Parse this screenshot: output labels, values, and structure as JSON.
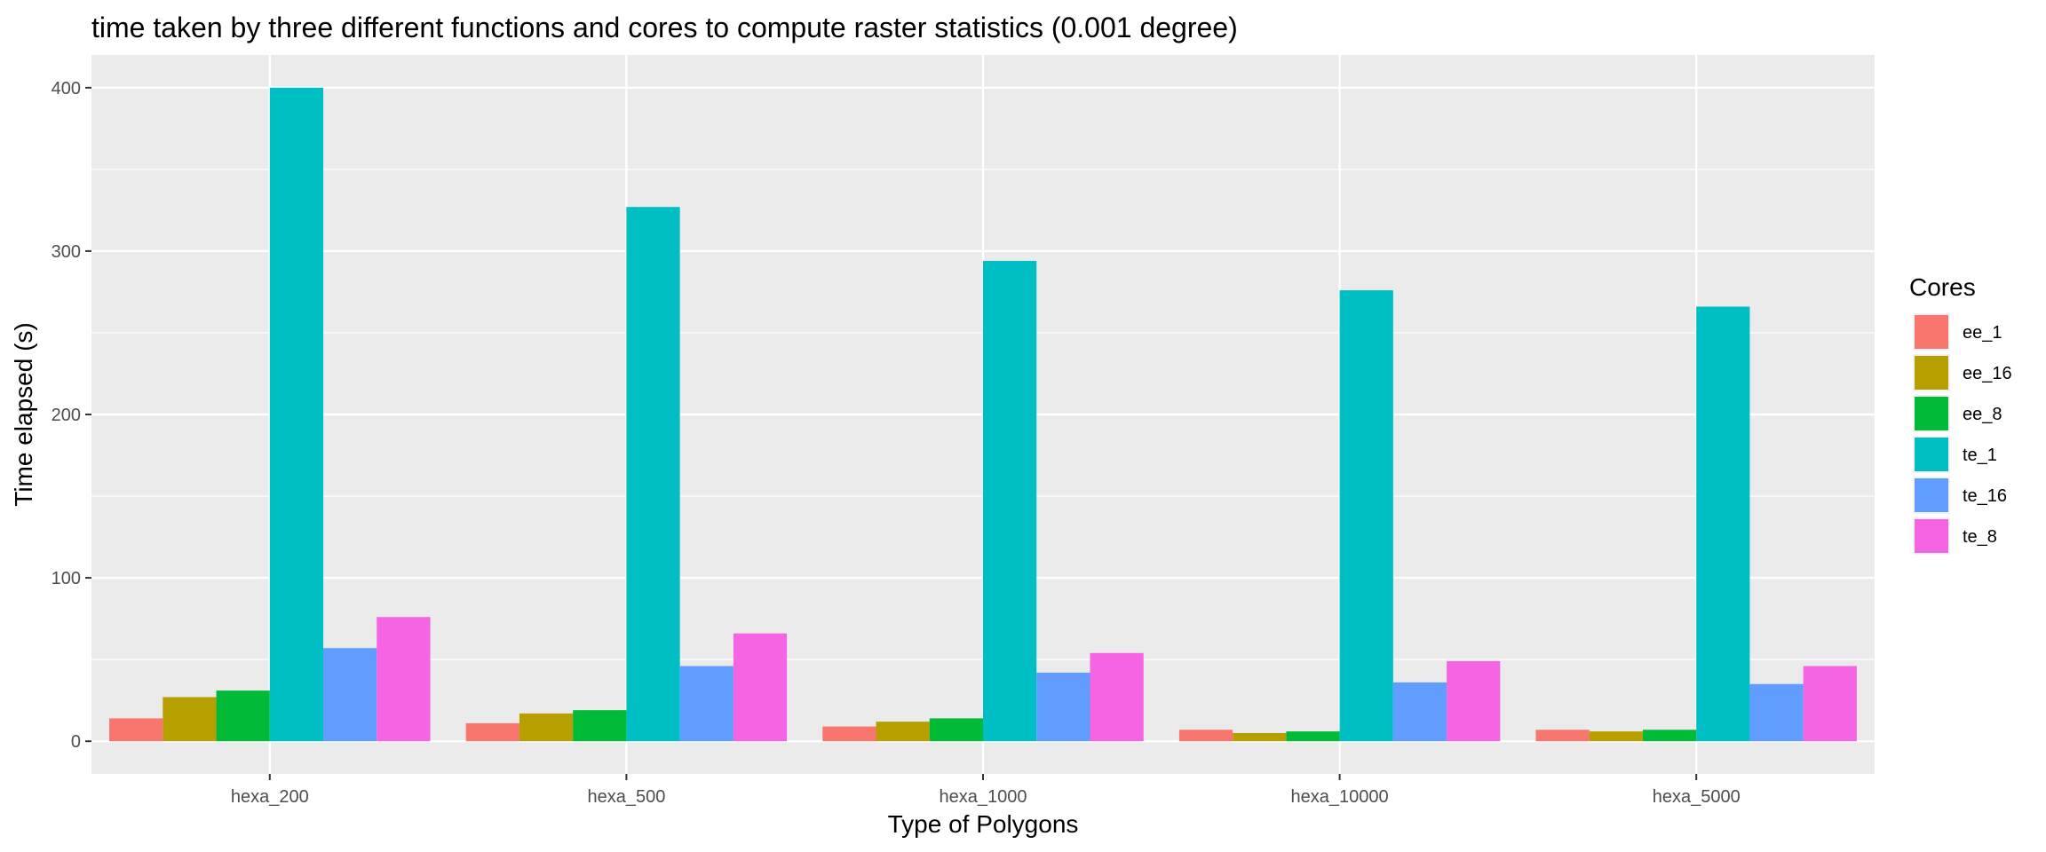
{
  "chart_data": {
    "type": "bar",
    "title": "time taken by three different functions and cores to compute raster statistics (0.001 degree)",
    "xlabel": "Type of Polygons",
    "ylabel": "Time elapsed (s)",
    "ylim": [
      -20,
      420
    ],
    "yticks": [
      0,
      100,
      200,
      300,
      400
    ],
    "grid": true,
    "categories": [
      "hexa_200",
      "hexa_500",
      "hexa_1000",
      "hexa_10000",
      "hexa_5000"
    ],
    "legend": {
      "title": "Cores",
      "position": "right"
    },
    "series": [
      {
        "name": "ee_1",
        "color": "#F8766D",
        "values": [
          14,
          11,
          9,
          7,
          7
        ]
      },
      {
        "name": "ee_16",
        "color": "#B79F00",
        "values": [
          27,
          17,
          12,
          5,
          6
        ]
      },
      {
        "name": "ee_8",
        "color": "#00BA38",
        "values": [
          31,
          19,
          14,
          6,
          7
        ]
      },
      {
        "name": "te_1",
        "color": "#00BFC4",
        "values": [
          400,
          327,
          294,
          276,
          266
        ]
      },
      {
        "name": "te_16",
        "color": "#619CFF",
        "values": [
          57,
          46,
          42,
          36,
          35
        ]
      },
      {
        "name": "te_8",
        "color": "#F564E3",
        "values": [
          76,
          66,
          54,
          49,
          46
        ]
      }
    ]
  }
}
